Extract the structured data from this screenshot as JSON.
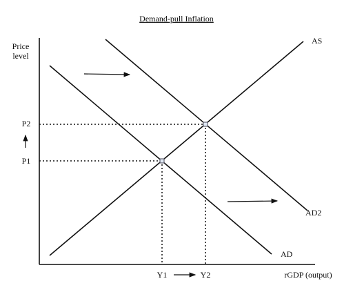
{
  "title": "Demand-pull Inflation",
  "y_axis_label": [
    "Price",
    "level"
  ],
  "x_axis_label": "rGDP (output)",
  "curves": {
    "as": "AS",
    "ad": "AD",
    "ad2": "AD2"
  },
  "price_levels": [
    "P1",
    "P2"
  ],
  "outputs": [
    "Y1",
    "Y2"
  ]
}
